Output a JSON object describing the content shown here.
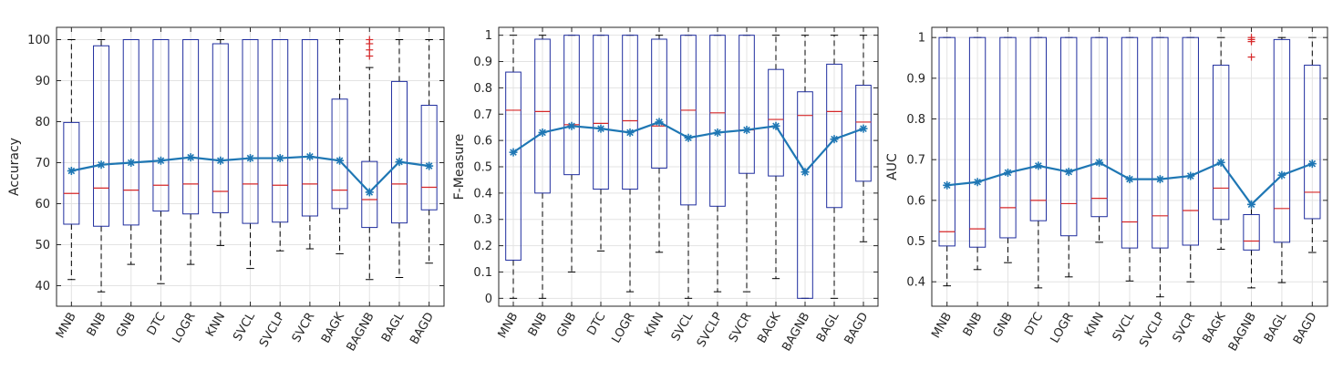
{
  "chart_data": [
    {
      "type": "box",
      "ylabel": "Accuracy",
      "ylim": [
        35,
        103
      ],
      "yticks": [
        40,
        50,
        60,
        70,
        80,
        90,
        100
      ],
      "ytick_labels": [
        "40",
        "50",
        "60",
        "70",
        "80",
        "90",
        "100"
      ],
      "grid": true,
      "categories": [
        "MNB",
        "BNB",
        "GNB",
        "DTC",
        "LOGR",
        "KNN",
        "SVCL",
        "SVCLP",
        "SVCR",
        "BAGK",
        "BAGNB",
        "BAGL",
        "BAGD"
      ],
      "boxes": [
        {
          "whisker_low": 41.5,
          "q1": 55.0,
          "median": 62.5,
          "q3": 79.8,
          "whisker_high": 100,
          "outliers": []
        },
        {
          "whisker_low": 38.5,
          "q1": 54.5,
          "median": 63.8,
          "q3": 98.5,
          "whisker_high": 100,
          "outliers": []
        },
        {
          "whisker_low": 45.2,
          "q1": 54.8,
          "median": 63.3,
          "q3": 100,
          "whisker_high": 100,
          "outliers": []
        },
        {
          "whisker_low": 40.5,
          "q1": 58.2,
          "median": 64.5,
          "q3": 100,
          "whisker_high": 100,
          "outliers": []
        },
        {
          "whisker_low": 45.2,
          "q1": 57.5,
          "median": 64.8,
          "q3": 100,
          "whisker_high": 100,
          "outliers": []
        },
        {
          "whisker_low": 49.8,
          "q1": 57.8,
          "median": 63.0,
          "q3": 99.0,
          "whisker_high": 100,
          "outliers": []
        },
        {
          "whisker_low": 44.2,
          "q1": 55.2,
          "median": 64.8,
          "q3": 100,
          "whisker_high": 100,
          "outliers": []
        },
        {
          "whisker_low": 48.5,
          "q1": 55.5,
          "median": 64.5,
          "q3": 100,
          "whisker_high": 100,
          "outliers": []
        },
        {
          "whisker_low": 49.0,
          "q1": 57.0,
          "median": 64.8,
          "q3": 100,
          "whisker_high": 100,
          "outliers": []
        },
        {
          "whisker_low": 47.8,
          "q1": 58.8,
          "median": 63.3,
          "q3": 85.5,
          "whisker_high": 100,
          "outliers": []
        },
        {
          "whisker_low": 41.5,
          "q1": 54.2,
          "median": 61.0,
          "q3": 70.3,
          "whisker_high": 93.2,
          "outliers": [
            96.0,
            97.5,
            99.0,
            100.0
          ]
        },
        {
          "whisker_low": 42.0,
          "q1": 55.3,
          "median": 64.8,
          "q3": 89.8,
          "whisker_high": 100,
          "outliers": []
        },
        {
          "whisker_low": 45.5,
          "q1": 58.5,
          "median": 64.0,
          "q3": 84.0,
          "whisker_high": 100,
          "outliers": []
        }
      ],
      "mean_line": [
        68.0,
        69.5,
        70.0,
        70.5,
        71.3,
        70.5,
        71.1,
        71.1,
        71.5,
        70.5,
        62.8,
        70.2,
        69.2
      ]
    },
    {
      "type": "box",
      "ylabel": "F-Measure",
      "ylim": [
        -0.03,
        1.03
      ],
      "yticks": [
        0,
        0.1,
        0.2,
        0.3,
        0.4,
        0.5,
        0.6,
        0.7,
        0.8,
        0.9,
        1
      ],
      "ytick_labels": [
        "0",
        "0.1",
        "0.2",
        "0.3",
        "0.4",
        "0.5",
        "0.6",
        "0.7",
        "0.8",
        "0.9",
        "1"
      ],
      "grid": true,
      "categories": [
        "MNB",
        "BNB",
        "GNB",
        "DTC",
        "LOGR",
        "KNN",
        "SVCL",
        "SVCLP",
        "SVCR",
        "BAGK",
        "BAGNB",
        "BAGL",
        "BAGD"
      ],
      "boxes": [
        {
          "whisker_low": 0.0,
          "q1": 0.145,
          "median": 0.715,
          "q3": 0.86,
          "whisker_high": 1.0,
          "outliers": []
        },
        {
          "whisker_low": 0.0,
          "q1": 0.4,
          "median": 0.71,
          "q3": 0.985,
          "whisker_high": 1.0,
          "outliers": []
        },
        {
          "whisker_low": 0.1,
          "q1": 0.47,
          "median": 0.66,
          "q3": 1.0,
          "whisker_high": 1.0,
          "outliers": []
        },
        {
          "whisker_low": 0.18,
          "q1": 0.415,
          "median": 0.665,
          "q3": 1.0,
          "whisker_high": 1.0,
          "outliers": []
        },
        {
          "whisker_low": 0.025,
          "q1": 0.415,
          "median": 0.675,
          "q3": 1.0,
          "whisker_high": 1.0,
          "outliers": []
        },
        {
          "whisker_low": 0.175,
          "q1": 0.495,
          "median": 0.655,
          "q3": 0.985,
          "whisker_high": 1.0,
          "outliers": []
        },
        {
          "whisker_low": 0.0,
          "q1": 0.355,
          "median": 0.715,
          "q3": 1.0,
          "whisker_high": 1.0,
          "outliers": []
        },
        {
          "whisker_low": 0.025,
          "q1": 0.35,
          "median": 0.705,
          "q3": 1.0,
          "whisker_high": 1.0,
          "outliers": []
        },
        {
          "whisker_low": 0.025,
          "q1": 0.475,
          "median": 0.64,
          "q3": 1.0,
          "whisker_high": 1.0,
          "outliers": []
        },
        {
          "whisker_low": 0.075,
          "q1": 0.465,
          "median": 0.68,
          "q3": 0.87,
          "whisker_high": 1.0,
          "outliers": []
        },
        {
          "whisker_low": 0.0,
          "q1": 0.0,
          "median": 0.695,
          "q3": 0.785,
          "whisker_high": 1.0,
          "outliers": []
        },
        {
          "whisker_low": 0.0,
          "q1": 0.345,
          "median": 0.71,
          "q3": 0.89,
          "whisker_high": 1.0,
          "outliers": []
        },
        {
          "whisker_low": 0.215,
          "q1": 0.445,
          "median": 0.67,
          "q3": 0.81,
          "whisker_high": 1.0,
          "outliers": []
        }
      ],
      "mean_line": [
        0.555,
        0.63,
        0.655,
        0.645,
        0.63,
        0.67,
        0.61,
        0.63,
        0.64,
        0.655,
        0.48,
        0.605,
        0.645
      ]
    },
    {
      "type": "box",
      "ylabel": "AUC",
      "ylim": [
        0.34,
        1.025
      ],
      "yticks": [
        0.4,
        0.5,
        0.6,
        0.7,
        0.8,
        0.9,
        1
      ],
      "ytick_labels": [
        "0.4",
        "0.5",
        "0.6",
        "0.7",
        "0.8",
        "0.9",
        "1"
      ],
      "grid": true,
      "categories": [
        "MNB",
        "BNB",
        "GNB",
        "DTC",
        "LOGR",
        "KNN",
        "SVCL",
        "SVCLP",
        "SVCR",
        "BAGK",
        "BAGNB",
        "BAGL",
        "BAGD"
      ],
      "boxes": [
        {
          "whisker_low": 0.39,
          "q1": 0.488,
          "median": 0.523,
          "q3": 1.0,
          "whisker_high": 1.0,
          "outliers": []
        },
        {
          "whisker_low": 0.43,
          "q1": 0.485,
          "median": 0.53,
          "q3": 1.0,
          "whisker_high": 1.0,
          "outliers": []
        },
        {
          "whisker_low": 0.447,
          "q1": 0.508,
          "median": 0.582,
          "q3": 1.0,
          "whisker_high": 1.0,
          "outliers": []
        },
        {
          "whisker_low": 0.385,
          "q1": 0.55,
          "median": 0.6,
          "q3": 1.0,
          "whisker_high": 1.0,
          "outliers": []
        },
        {
          "whisker_low": 0.412,
          "q1": 0.513,
          "median": 0.592,
          "q3": 1.0,
          "whisker_high": 1.0,
          "outliers": []
        },
        {
          "whisker_low": 0.497,
          "q1": 0.56,
          "median": 0.605,
          "q3": 1.0,
          "whisker_high": 1.0,
          "outliers": []
        },
        {
          "whisker_low": 0.402,
          "q1": 0.483,
          "median": 0.547,
          "q3": 1.0,
          "whisker_high": 1.0,
          "outliers": []
        },
        {
          "whisker_low": 0.363,
          "q1": 0.483,
          "median": 0.562,
          "q3": 1.0,
          "whisker_high": 1.0,
          "outliers": []
        },
        {
          "whisker_low": 0.4,
          "q1": 0.49,
          "median": 0.575,
          "q3": 1.0,
          "whisker_high": 1.0,
          "outliers": []
        },
        {
          "whisker_low": 0.48,
          "q1": 0.553,
          "median": 0.63,
          "q3": 0.932,
          "whisker_high": 1.0,
          "outliers": []
        },
        {
          "whisker_low": 0.385,
          "q1": 0.478,
          "median": 0.5,
          "q3": 0.565,
          "whisker_high": 0.59,
          "outliers": [
            0.952,
            0.99,
            0.995,
            1.0
          ]
        },
        {
          "whisker_low": 0.398,
          "q1": 0.497,
          "median": 0.58,
          "q3": 0.995,
          "whisker_high": 1.0,
          "outliers": []
        },
        {
          "whisker_low": 0.472,
          "q1": 0.555,
          "median": 0.62,
          "q3": 0.932,
          "whisker_high": 1.0,
          "outliers": []
        }
      ],
      "mean_line": [
        0.637,
        0.645,
        0.668,
        0.685,
        0.67,
        0.693,
        0.652,
        0.652,
        0.66,
        0.693,
        0.59,
        0.662,
        0.69
      ]
    }
  ],
  "colors": {
    "box_edge": "#1f2d9e",
    "median": "#d62728",
    "whisker": "#000000",
    "mean_line": "#1f77b4",
    "outlier": "#d62728",
    "grid": "#e3e3e3",
    "axis": "#262626"
  },
  "mean_marker": "asterisk"
}
